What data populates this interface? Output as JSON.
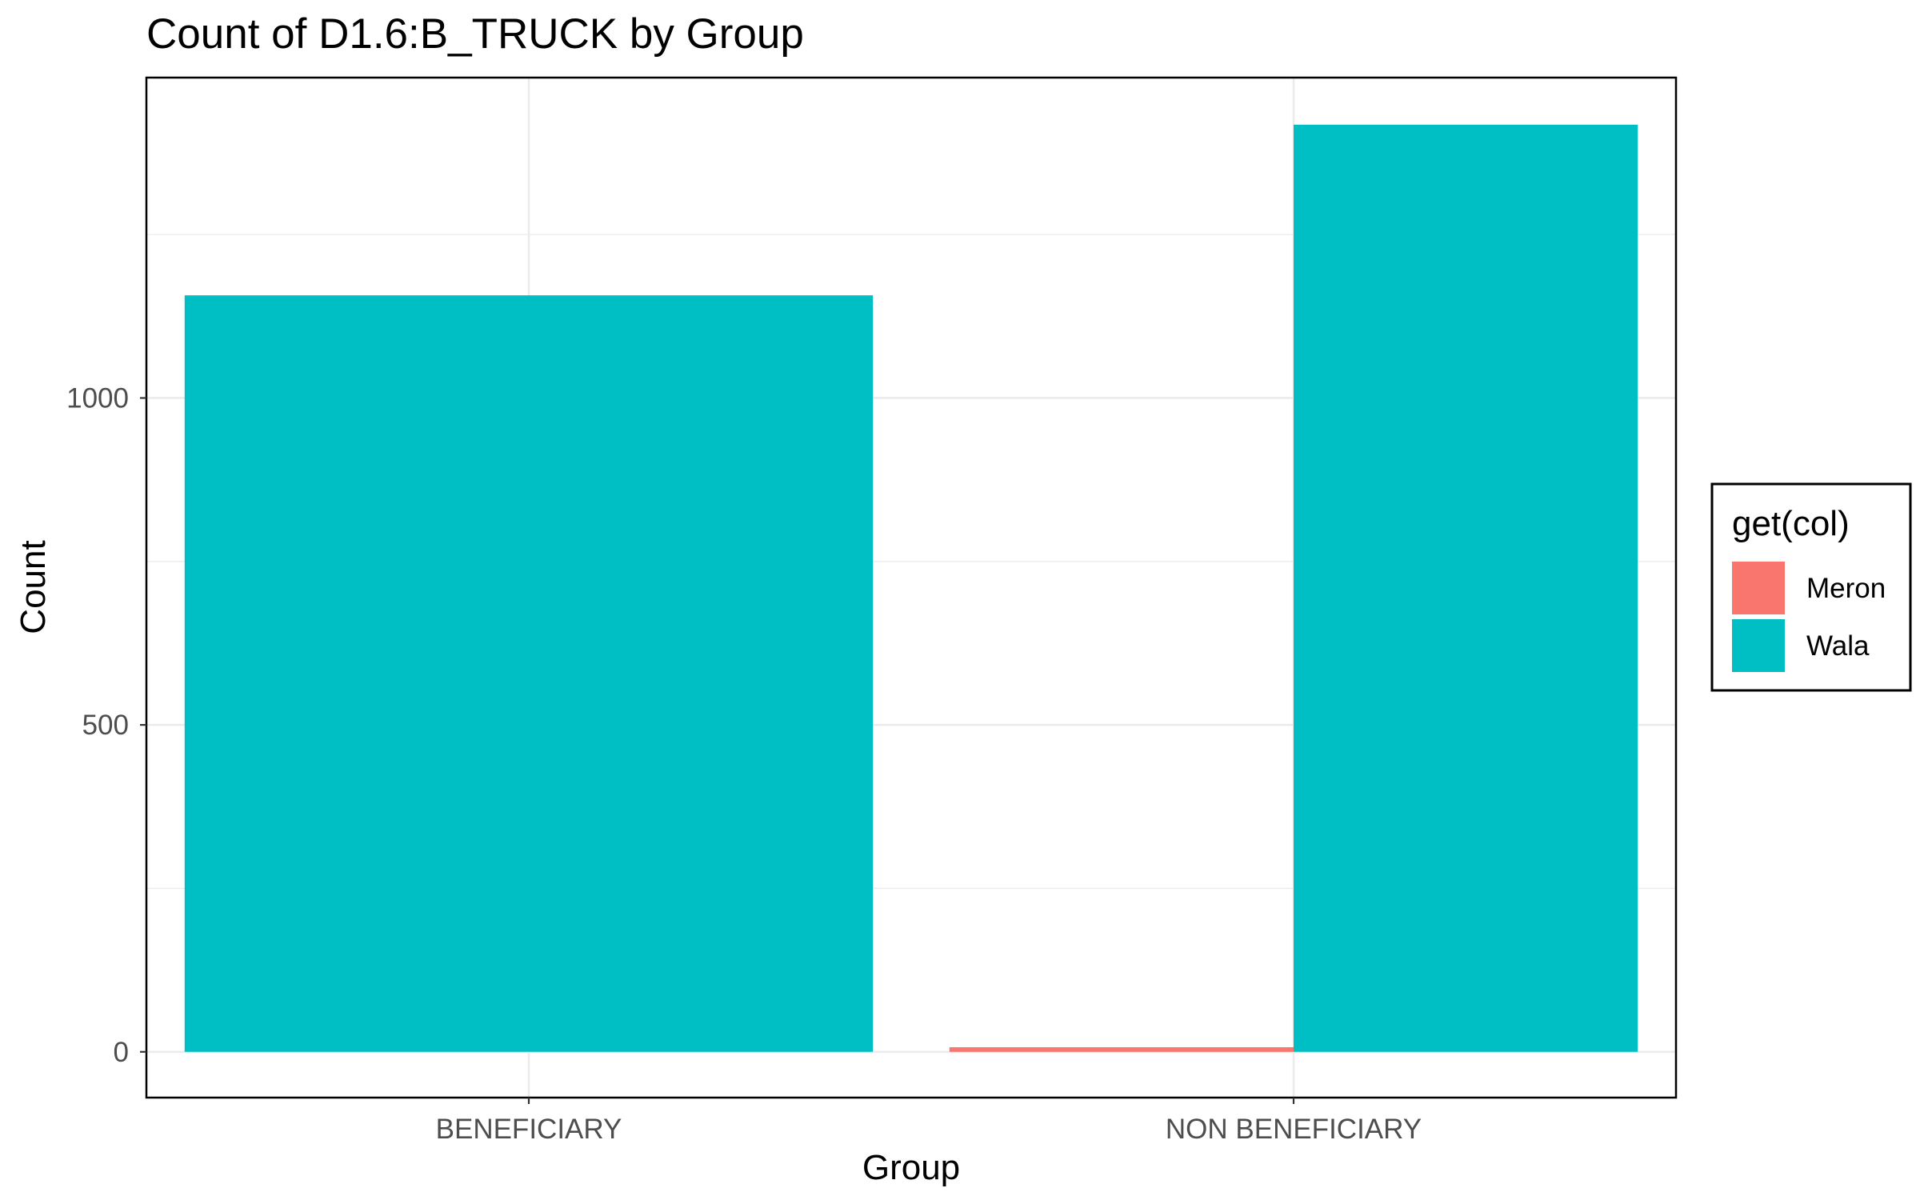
{
  "chart_data": {
    "type": "bar",
    "title": "Count of D1.6:B_TRUCK by Group",
    "xlabel": "Group",
    "ylabel": "Count",
    "categories": [
      "BENEFICIARY",
      "NON BENEFICIARY"
    ],
    "series": [
      {
        "name": "Meron",
        "color": "#F8766D",
        "values": [
          0,
          7
        ]
      },
      {
        "name": "Wala",
        "color": "#00BFC4",
        "values": [
          1157,
          1418
        ]
      }
    ],
    "yticks": [
      0,
      500,
      1000
    ],
    "yticks_labels": [
      "0",
      "500",
      "1000"
    ],
    "ylim": [
      -70,
      1490
    ],
    "grid": true,
    "legend": {
      "title": "get(col)",
      "position": "right"
    }
  }
}
